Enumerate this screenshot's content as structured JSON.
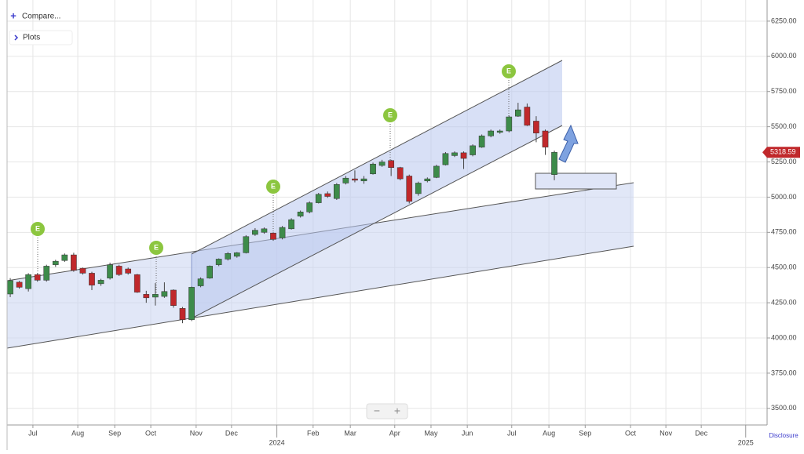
{
  "controls": {
    "compare": "Compare...",
    "plots": "Plots",
    "zoom_out": "−",
    "zoom_in": "+",
    "disclosure": "Disclosure"
  },
  "chart_data": {
    "type": "candlestick",
    "x": [
      0,
      1,
      2,
      3,
      4,
      5,
      6,
      7,
      8,
      9,
      10,
      11,
      12,
      13,
      14,
      15,
      16,
      17,
      18,
      19,
      20,
      21,
      22,
      23,
      24,
      25,
      26,
      27,
      28,
      29,
      30,
      31,
      32,
      33,
      34,
      35,
      36,
      37,
      38,
      39,
      40,
      41,
      42,
      43,
      44,
      45,
      46,
      47,
      48,
      49,
      50,
      51,
      52,
      53,
      54,
      55,
      56,
      57,
      58,
      59,
      60
    ],
    "open": [
      4312,
      4396,
      4350,
      4450,
      4410,
      4520,
      4550,
      4590,
      4495,
      4460,
      4385,
      4425,
      4510,
      4490,
      4450,
      4310,
      4290,
      4295,
      4340,
      4210,
      4130,
      4370,
      4425,
      4520,
      4560,
      4580,
      4605,
      4735,
      4750,
      4745,
      4710,
      4775,
      4865,
      4895,
      4960,
      5025,
      4990,
      5100,
      5130,
      5115,
      5165,
      5225,
      5260,
      5210,
      5150,
      5025,
      5115,
      5140,
      5230,
      5295,
      5315,
      5300,
      5355,
      5435,
      5460,
      5470,
      5575,
      5640,
      5540,
      5470,
      5160
    ],
    "high": [
      4425,
      4405,
      4460,
      4460,
      4520,
      4555,
      4600,
      4605,
      4500,
      4470,
      4420,
      4535,
      4520,
      4500,
      4455,
      4335,
      4390,
      4395,
      4345,
      4220,
      4365,
      4430,
      4515,
      4565,
      4610,
      4610,
      4730,
      4780,
      4785,
      4750,
      4795,
      4850,
      4905,
      4970,
      5030,
      5040,
      5100,
      5150,
      5190,
      5150,
      5245,
      5265,
      5265,
      5215,
      5160,
      5110,
      5140,
      5230,
      5320,
      5325,
      5325,
      5375,
      5445,
      5480,
      5480,
      5580,
      5670,
      5665,
      5575,
      5480,
      5330
    ],
    "low": [
      4290,
      4350,
      4330,
      4400,
      4400,
      4505,
      4540,
      4470,
      4450,
      4340,
      4370,
      4415,
      4440,
      4450,
      4320,
      4250,
      4230,
      4285,
      4215,
      4105,
      4120,
      4360,
      4420,
      4510,
      4550,
      4570,
      4600,
      4725,
      4740,
      4690,
      4700,
      4770,
      4855,
      4885,
      4955,
      4995,
      4980,
      5090,
      5105,
      5095,
      5160,
      5215,
      5150,
      5120,
      4955,
      5010,
      5105,
      5135,
      5225,
      5285,
      5200,
      5290,
      5350,
      5425,
      5450,
      5460,
      5570,
      5505,
      5390,
      5300,
      5120
    ],
    "close": [
      4407,
      4360,
      4450,
      4410,
      4510,
      4545,
      4590,
      4480,
      4460,
      4375,
      4410,
      4520,
      4450,
      4460,
      4325,
      4285,
      4310,
      4330,
      4230,
      4130,
      4360,
      4420,
      4510,
      4560,
      4600,
      4605,
      4720,
      4765,
      4775,
      4700,
      4785,
      4840,
      4895,
      4960,
      5020,
      5005,
      5090,
      5135,
      5120,
      5130,
      5235,
      5250,
      5210,
      5130,
      4970,
      5100,
      5130,
      5220,
      5310,
      5315,
      5275,
      5365,
      5435,
      5470,
      5470,
      5570,
      5620,
      5510,
      5455,
      5355,
      5318.59
    ],
    "up_color": "#3d8b4a",
    "down_color": "#c0282b",
    "xlim": [
      -0.35,
      83.46
    ],
    "xticks": [
      {
        "value": 2.5,
        "label": "Jul"
      },
      {
        "value": 7.45,
        "label": "Aug"
      },
      {
        "value": 11.52,
        "label": "Sep"
      },
      {
        "value": 15.5,
        "label": "Oct"
      },
      {
        "value": 20.5,
        "label": "Nov"
      },
      {
        "value": 24.4,
        "label": "Dec"
      },
      {
        "value": 33.4,
        "label": "Feb"
      },
      {
        "value": 37.5,
        "label": "Mar"
      },
      {
        "value": 42.4,
        "label": "Apr"
      },
      {
        "value": 46.4,
        "label": "May"
      },
      {
        "value": 50.4,
        "label": "Jun"
      },
      {
        "value": 55.3,
        "label": "Jul"
      },
      {
        "value": 59.4,
        "label": "Aug"
      },
      {
        "value": 63.4,
        "label": "Sep"
      },
      {
        "value": 68.4,
        "label": "Oct"
      },
      {
        "value": 72.3,
        "label": "Nov"
      },
      {
        "value": 76.2,
        "label": "Dec"
      }
    ],
    "year_ticks": [
      {
        "value": 29.4,
        "label": "2024"
      },
      {
        "value": 81.1,
        "label": "2025"
      }
    ],
    "ylim": [
      3382,
      6400
    ],
    "yticks": [
      {
        "value": 3500,
        "label": "3500.00"
      },
      {
        "value": 3750,
        "label": "3750.00"
      },
      {
        "value": 4000,
        "label": "4000.00"
      },
      {
        "value": 4250,
        "label": "4250.00"
      },
      {
        "value": 4500,
        "label": "4500.00"
      },
      {
        "value": 4750,
        "label": "4750.00"
      },
      {
        "value": 5000,
        "label": "5000.00"
      },
      {
        "value": 5250,
        "label": "5250.00"
      },
      {
        "value": 5500,
        "label": "5500.00"
      },
      {
        "value": 5750,
        "label": "5750.00"
      },
      {
        "value": 6000,
        "label": "6000.00"
      },
      {
        "value": 6250,
        "label": "6250.00"
      }
    ],
    "grid": true,
    "last_price": 5318.59,
    "event_labels": [
      "E",
      "E",
      "E",
      "E",
      "E"
    ]
  }
}
